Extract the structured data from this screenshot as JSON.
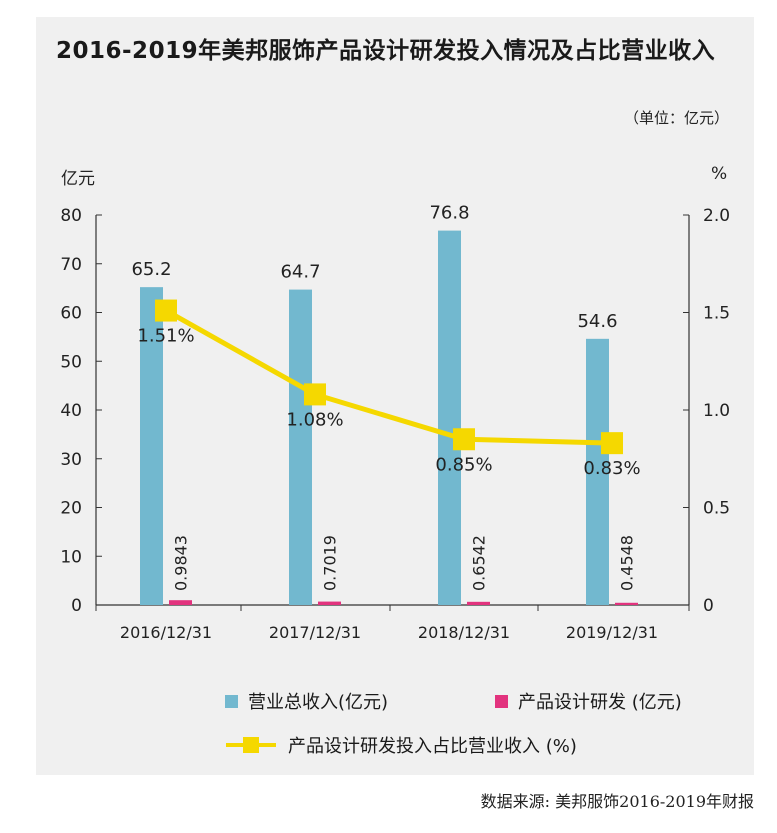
{
  "title": "2016-2019年美邦服饰产品设计研发投入情况及占比营业收入",
  "unit_note": "（单位：亿元）",
  "source": "数据来源: 美邦服饰2016-2019年财报",
  "colors": {
    "revenue_bar": "#72b8cf",
    "rd_bar": "#e2337e",
    "ratio_line": "#f5d800",
    "panel_bg": "#f0f0f0"
  },
  "chart_data": {
    "type": "bar+line",
    "categories": [
      "2016/12/31",
      "2017/12/31",
      "2018/12/31",
      "2019/12/31"
    ],
    "left_axis": {
      "label": "亿元",
      "ylim": [
        0,
        80
      ],
      "ticks": [
        "0",
        "10",
        "20",
        "30",
        "40",
        "50",
        "60",
        "70",
        "80"
      ]
    },
    "right_axis": {
      "label": "%",
      "ylim": [
        0,
        2.0
      ],
      "ticks": [
        "0",
        "0.5",
        "1.0",
        "1.5",
        "2.0"
      ]
    },
    "series": [
      {
        "name": "营业总收入(亿元)",
        "type": "bar",
        "axis": "left",
        "values": [
          65.2,
          64.7,
          76.8,
          54.6
        ],
        "labels": [
          "65.2",
          "64.7",
          "76.8",
          "54.6"
        ]
      },
      {
        "name": "产品设计研发 (亿元)",
        "type": "bar",
        "axis": "left",
        "values": [
          0.9843,
          0.7019,
          0.6542,
          0.4548
        ],
        "labels": [
          "0.9843",
          "0.7019",
          "0.6542",
          "0.4548"
        ]
      },
      {
        "name": "产品设计研发投入占比营业收入 (%)",
        "type": "line",
        "axis": "right",
        "values": [
          1.51,
          1.08,
          0.85,
          0.83
        ],
        "labels": [
          "1.51%",
          "1.08%",
          "0.85%",
          "0.83%"
        ]
      }
    ],
    "legend": [
      "营业总收入(亿元)",
      "产品设计研发 (亿元)",
      "产品设计研发投入占比营业收入 (%)"
    ],
    "legend_position": "bottom",
    "grid": false
  }
}
